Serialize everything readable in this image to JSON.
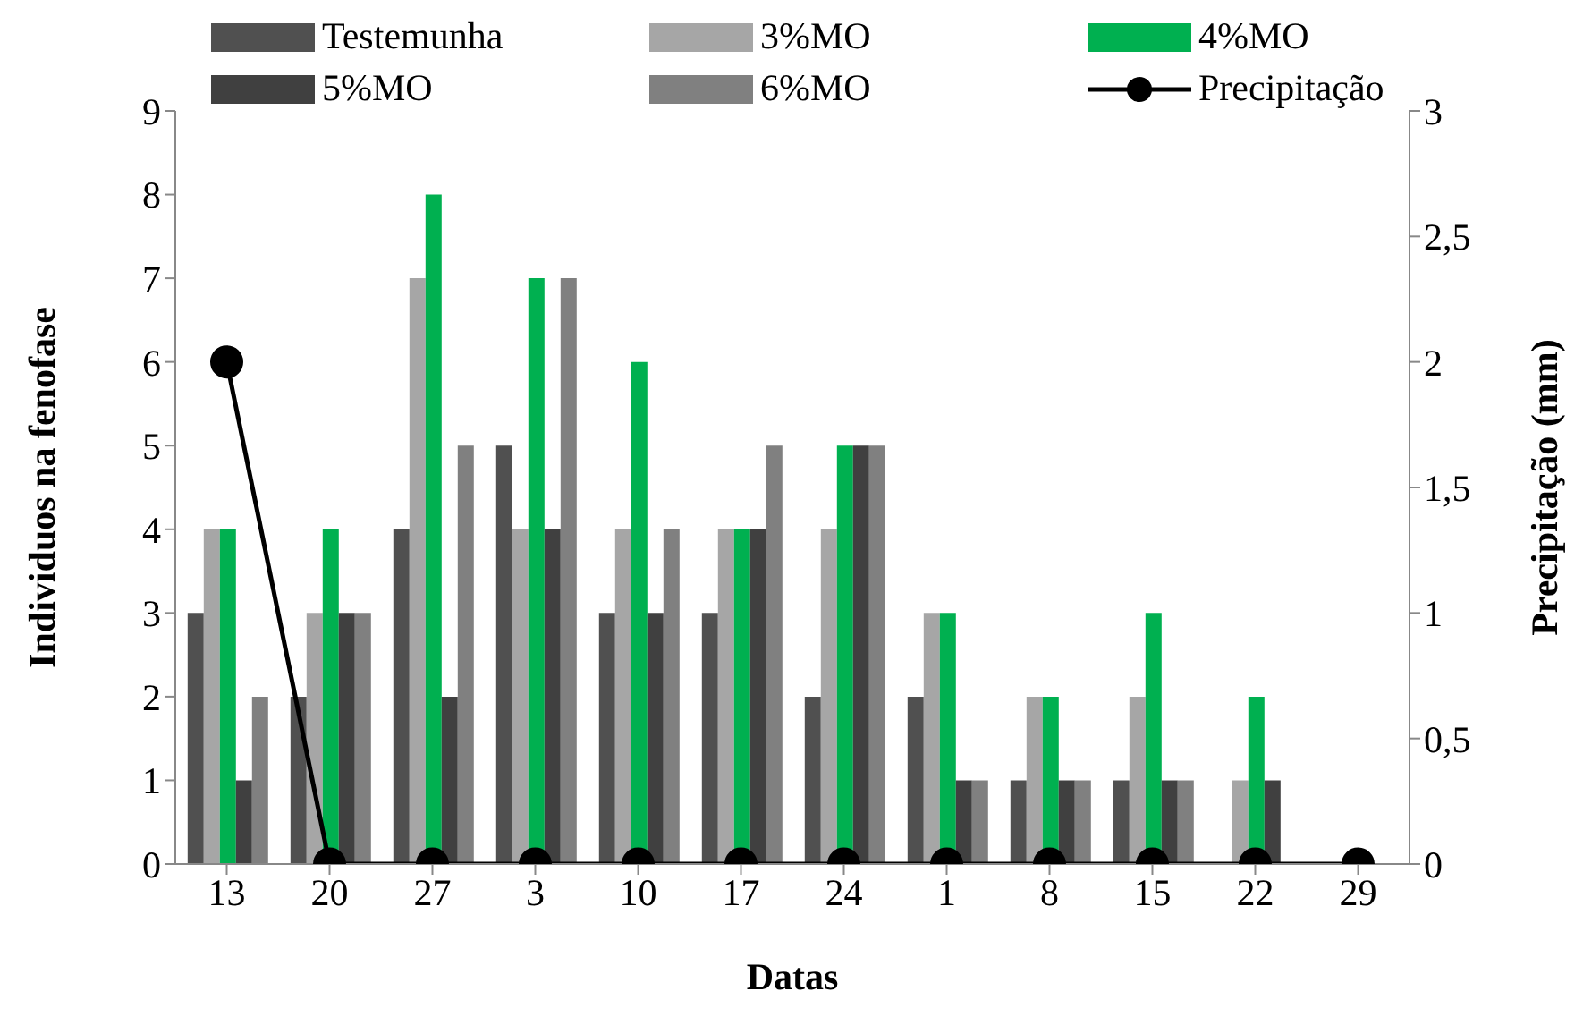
{
  "chart_data": {
    "type": "bar",
    "xlabel": "Datas",
    "ylabel": "Individuos na fenofase",
    "y2label": "Precipitação (mm)",
    "categories": [
      "13",
      "20",
      "27",
      "3",
      "10",
      "17",
      "24",
      "1",
      "8",
      "15",
      "22",
      "29"
    ],
    "series": [
      {
        "name": "Testemunha",
        "color": "#505050",
        "values": [
          3,
          2,
          4,
          5,
          3,
          3,
          2,
          2,
          1,
          1,
          0,
          0
        ]
      },
      {
        "name": "3%MO",
        "color": "#a6a6a6",
        "values": [
          4,
          3,
          7,
          4,
          4,
          4,
          4,
          3,
          2,
          2,
          1,
          0
        ]
      },
      {
        "name": "4%MO",
        "color": "#00b050",
        "values": [
          4,
          4,
          8,
          7,
          6,
          4,
          5,
          3,
          2,
          3,
          2,
          0
        ]
      },
      {
        "name": "5%MO",
        "color": "#404040",
        "values": [
          1,
          3,
          2,
          4,
          3,
          4,
          5,
          1,
          1,
          1,
          1,
          0
        ]
      },
      {
        "name": "6%MO",
        "color": "#808080",
        "values": [
          2,
          3,
          5,
          7,
          4,
          5,
          5,
          1,
          1,
          1,
          0,
          0
        ]
      },
      {
        "name": "Precipitação",
        "type": "line",
        "axis": "y2",
        "color": "#000000",
        "marker": "circle",
        "values": [
          2,
          0,
          0,
          0,
          0,
          0,
          0,
          0,
          0,
          0,
          0,
          0
        ]
      }
    ],
    "ylim": [
      0,
      9
    ],
    "yticks": [
      0,
      1,
      2,
      3,
      4,
      5,
      6,
      7,
      8,
      9
    ],
    "y2lim": [
      0,
      3
    ],
    "y2ticks": [
      0,
      {
        "value": 0.5,
        "label": "0,5"
      },
      1,
      {
        "value": 1.5,
        "label": "1,5"
      },
      2,
      {
        "value": 2.5,
        "label": "2,5"
      },
      3
    ],
    "legend": "top"
  }
}
